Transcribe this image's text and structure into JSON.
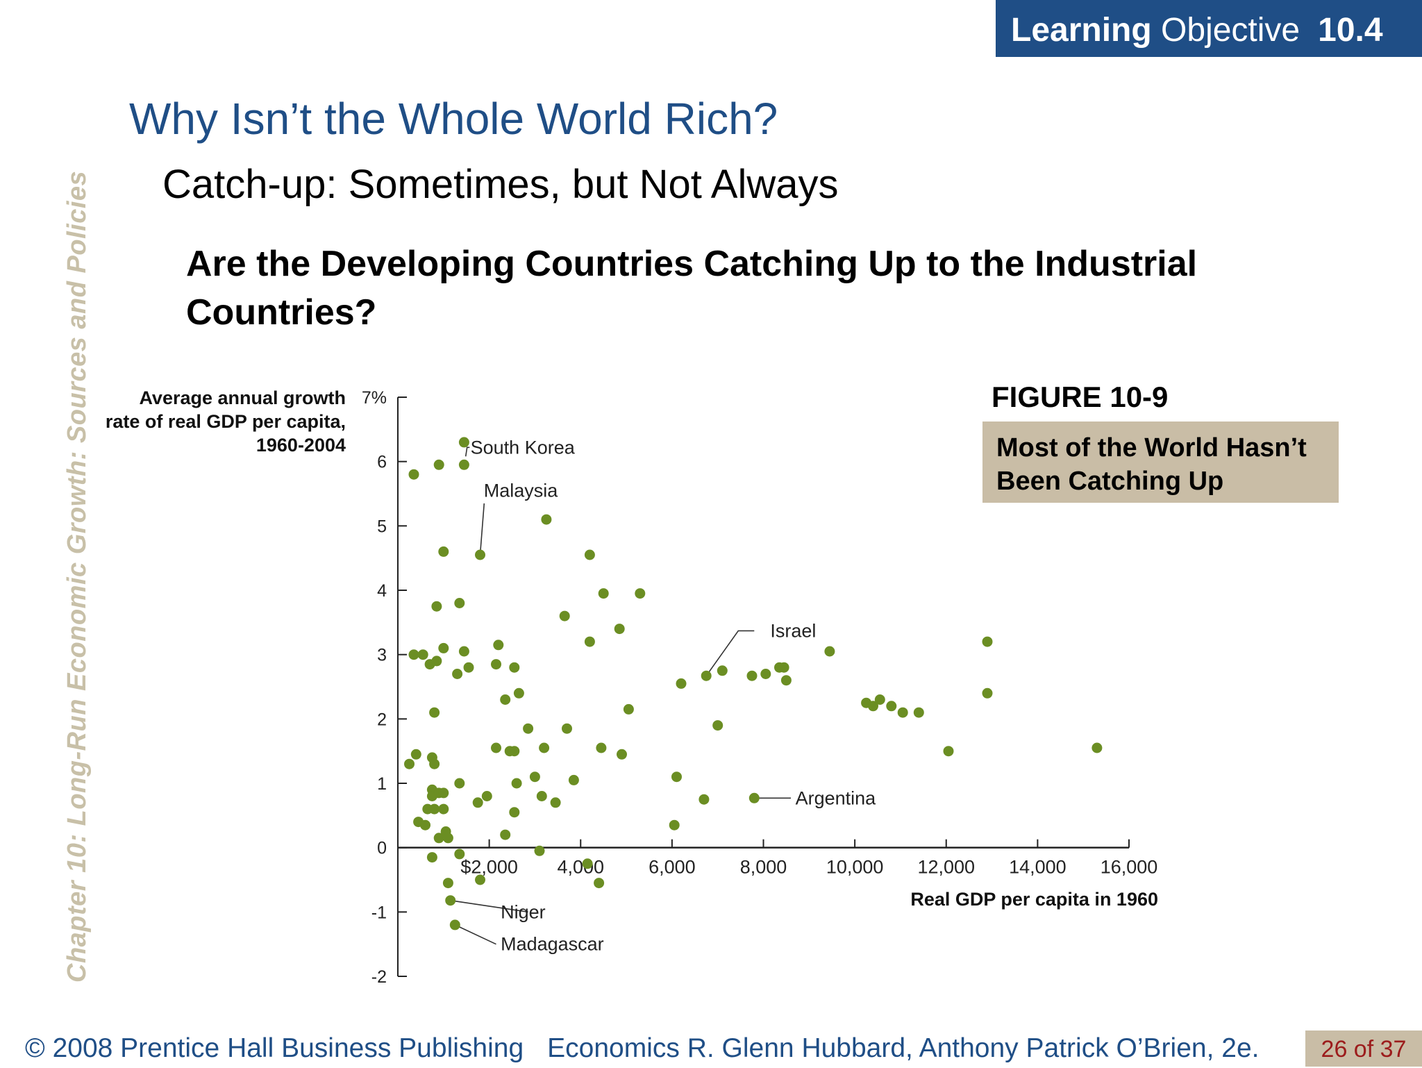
{
  "banner": {
    "bold": "Learning",
    "text": "Objective",
    "number": "10.4"
  },
  "side_text": "Chapter 10:  Long-Run Economic Growth:  Sources and Policies",
  "title": "Why Isn’t the Whole World Rich?",
  "subtitle": "Catch-up:  Sometimes, but Not Always",
  "question": "Are the Developing Countries Catching Up to the Industrial Countries?",
  "figure": {
    "label": "FIGURE 10-9",
    "caption": "Most of the World Hasn’t Been Catching Up"
  },
  "footer": {
    "copyright": "© 2008 Prentice Hall Business Publishing",
    "book": "Economics  R. Glenn Hubbard, Anthony Patrick O’Brien, 2e.",
    "page": "26 of 37"
  },
  "colors": {
    "accent": "#1f4e86",
    "point": "#6b8e23",
    "caption_bg": "#c9bda6",
    "side_text": "#c8c0a8",
    "page_text": "#9c1c1c"
  },
  "chart_data": {
    "type": "scatter",
    "ylabel": "Average annual growth rate of real GDP per capita, 1960-2004",
    "xlabel": "Real GDP per capita in 1960",
    "xlim": [
      0,
      16000
    ],
    "ylim": [
      -2,
      7
    ],
    "x_ticks": [
      {
        "v": 2000,
        "label": "$2,000"
      },
      {
        "v": 4000,
        "label": "4,000"
      },
      {
        "v": 6000,
        "label": "6,000"
      },
      {
        "v": 8000,
        "label": "8,000"
      },
      {
        "v": 10000,
        "label": "10,000"
      },
      {
        "v": 12000,
        "label": "12,000"
      },
      {
        "v": 14000,
        "label": "14,000"
      },
      {
        "v": 16000,
        "label": "16,000"
      }
    ],
    "y_ticks": [
      {
        "v": 7,
        "label": "7%"
      },
      {
        "v": 6,
        "label": "6"
      },
      {
        "v": 5,
        "label": "5"
      },
      {
        "v": 4,
        "label": "4"
      },
      {
        "v": 3,
        "label": "3"
      },
      {
        "v": 2,
        "label": "2"
      },
      {
        "v": 1,
        "label": "1"
      },
      {
        "v": 0,
        "label": "0"
      },
      {
        "v": -1,
        "label": "-1"
      },
      {
        "v": -2,
        "label": "-2"
      }
    ],
    "annotations": [
      {
        "label": "South Korea",
        "x": 1450,
        "y": 5.95
      },
      {
        "label": "Malaysia",
        "x": 1800,
        "y": 4.55
      },
      {
        "label": "Israel",
        "x": 6750,
        "y": 2.67
      },
      {
        "label": "Argentina",
        "x": 7800,
        "y": 0.77
      },
      {
        "label": "Niger",
        "x": 1150,
        "y": -0.82
      },
      {
        "label": "Madagascar",
        "x": 1250,
        "y": -1.2
      }
    ],
    "points": [
      [
        1450,
        6.3
      ],
      [
        350,
        5.8
      ],
      [
        900,
        5.95
      ],
      [
        1450,
        5.95
      ],
      [
        3250,
        5.1
      ],
      [
        1800,
        4.55
      ],
      [
        1000,
        4.6
      ],
      [
        4200,
        4.55
      ],
      [
        4500,
        3.95
      ],
      [
        5300,
        3.95
      ],
      [
        1350,
        3.8
      ],
      [
        850,
        3.75
      ],
      [
        3650,
        3.6
      ],
      [
        4850,
        3.4
      ],
      [
        4200,
        3.2
      ],
      [
        2200,
        3.15
      ],
      [
        9450,
        3.05
      ],
      [
        12900,
        3.2
      ],
      [
        350,
        3.0
      ],
      [
        550,
        3.0
      ],
      [
        1000,
        3.1
      ],
      [
        1450,
        3.05
      ],
      [
        700,
        2.85
      ],
      [
        850,
        2.9
      ],
      [
        1550,
        2.8
      ],
      [
        1300,
        2.7
      ],
      [
        2150,
        2.85
      ],
      [
        2550,
        2.8
      ],
      [
        6750,
        2.67
      ],
      [
        7100,
        2.75
      ],
      [
        7750,
        2.67
      ],
      [
        8050,
        2.7
      ],
      [
        8350,
        2.8
      ],
      [
        8450,
        2.8
      ],
      [
        8500,
        2.6
      ],
      [
        6200,
        2.55
      ],
      [
        2350,
        2.3
      ],
      [
        2650,
        2.4
      ],
      [
        12900,
        2.4
      ],
      [
        10250,
        2.25
      ],
      [
        10400,
        2.2
      ],
      [
        10550,
        2.3
      ],
      [
        10800,
        2.2
      ],
      [
        11050,
        2.1
      ],
      [
        11400,
        2.1
      ],
      [
        800,
        2.1
      ],
      [
        5050,
        2.15
      ],
      [
        2850,
        1.85
      ],
      [
        3700,
        1.85
      ],
      [
        7000,
        1.9
      ],
      [
        12050,
        1.5
      ],
      [
        15300,
        1.55
      ],
      [
        2150,
        1.55
      ],
      [
        2450,
        1.5
      ],
      [
        2550,
        1.5
      ],
      [
        3200,
        1.55
      ],
      [
        4450,
        1.55
      ],
      [
        4900,
        1.45
      ],
      [
        250,
        1.3
      ],
      [
        400,
        1.45
      ],
      [
        750,
        1.4
      ],
      [
        800,
        1.3
      ],
      [
        2600,
        1.0
      ],
      [
        3000,
        1.1
      ],
      [
        3850,
        1.05
      ],
      [
        6100,
        1.1
      ],
      [
        1350,
        1.0
      ],
      [
        750,
        0.9
      ],
      [
        750,
        0.8
      ],
      [
        900,
        0.85
      ],
      [
        1000,
        0.85
      ],
      [
        3150,
        0.8
      ],
      [
        1950,
        0.8
      ],
      [
        1750,
        0.7
      ],
      [
        3450,
        0.7
      ],
      [
        6700,
        0.75
      ],
      [
        7800,
        0.77
      ],
      [
        650,
        0.6
      ],
      [
        800,
        0.6
      ],
      [
        1000,
        0.6
      ],
      [
        2550,
        0.55
      ],
      [
        450,
        0.4
      ],
      [
        600,
        0.35
      ],
      [
        1050,
        0.25
      ],
      [
        6050,
        0.35
      ],
      [
        900,
        0.15
      ],
      [
        1100,
        0.15
      ],
      [
        2350,
        0.2
      ],
      [
        750,
        -0.15
      ],
      [
        1350,
        -0.1
      ],
      [
        3100,
        -0.05
      ],
      [
        4150,
        -0.25
      ],
      [
        4400,
        -0.55
      ],
      [
        1100,
        -0.55
      ],
      [
        1800,
        -0.5
      ],
      [
        1150,
        -0.82
      ],
      [
        1250,
        -1.2
      ]
    ]
  }
}
